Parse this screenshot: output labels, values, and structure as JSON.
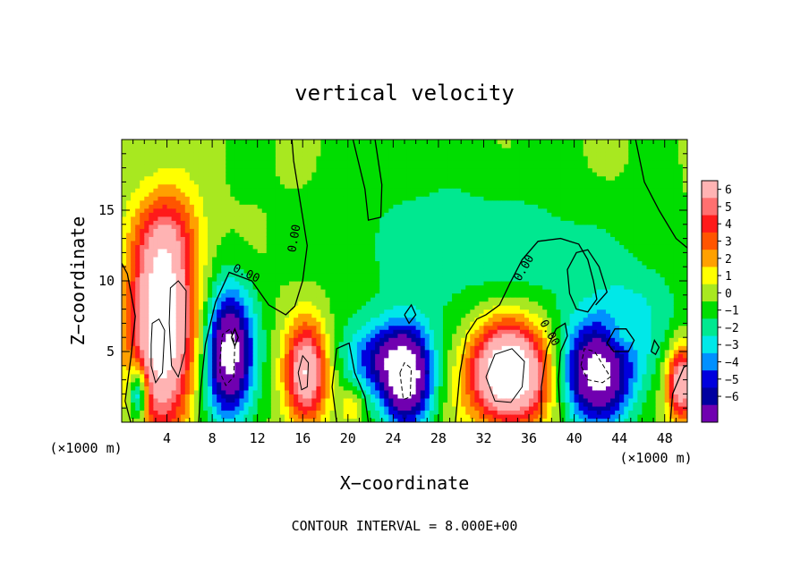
{
  "chart_data": {
    "type": "heatmap",
    "title": "vertical velocity",
    "xlabel": "X−coordinate",
    "ylabel": "Z−coordinate",
    "x_unit_label_left": "(×1000 m)",
    "x_unit_label_right": "(×1000 m)",
    "footer": "CONTOUR INTERVAL = 8.000E+00",
    "xlim": [
      0,
      50
    ],
    "ylim": [
      0,
      20
    ],
    "x_ticks": [
      {
        "value": 4,
        "label": "4"
      },
      {
        "value": 8,
        "label": "8"
      },
      {
        "value": 12,
        "label": "12"
      },
      {
        "value": 16,
        "label": "16"
      },
      {
        "value": 20,
        "label": "20"
      },
      {
        "value": 24,
        "label": "24"
      },
      {
        "value": 28,
        "label": "28"
      },
      {
        "value": 32,
        "label": "32"
      },
      {
        "value": 36,
        "label": "36"
      },
      {
        "value": 40,
        "label": "40"
      },
      {
        "value": 44,
        "label": "44"
      },
      {
        "value": 48,
        "label": "48"
      }
    ],
    "y_ticks": [
      {
        "value": 5,
        "label": "5"
      },
      {
        "value": 10,
        "label": "10"
      },
      {
        "value": 15,
        "label": "15"
      }
    ],
    "colorbar": {
      "min": -6,
      "max": 6,
      "levels": [
        "6",
        "5",
        "4",
        "3",
        "2",
        "1",
        "0",
        "−1",
        "−2",
        "−3",
        "−4",
        "−5",
        "−6"
      ],
      "colors": [
        "#ffb3b3",
        "#ff7070",
        "#ff1a1a",
        "#ff5500",
        "#ffa000",
        "#ffff00",
        "#a8e820",
        "#00dd00",
        "#00e890",
        "#00e8e8",
        "#0090ff",
        "#0000dd",
        "#0000a0",
        "#7000b0"
      ]
    },
    "background_value": 0,
    "features": [
      {
        "cx": 3.5,
        "cy": 6.5,
        "sx": 2.0,
        "sy": 5.0,
        "amp": 10
      },
      {
        "cx": 4.3,
        "cy": 13.0,
        "sx": 2.0,
        "sy": 2.5,
        "amp": 3
      },
      {
        "cx": 1.5,
        "cy": 2.0,
        "sx": 0.6,
        "sy": 1.5,
        "amp": -6
      },
      {
        "cx": 9.5,
        "cy": 4.8,
        "sx": 1.5,
        "sy": 3.2,
        "amp": -9
      },
      {
        "cx": 16.3,
        "cy": 3.5,
        "sx": 1.3,
        "sy": 2.5,
        "amp": 8
      },
      {
        "cx": 20.3,
        "cy": 1.2,
        "sx": 0.6,
        "sy": 0.8,
        "amp": 2
      },
      {
        "cx": 25.2,
        "cy": 3.3,
        "sx": 1.6,
        "sy": 2.5,
        "amp": -9
      },
      {
        "cx": 22.5,
        "cy": 4.5,
        "sx": 2.0,
        "sy": 1.8,
        "amp": -4
      },
      {
        "cx": 34.3,
        "cy": 3.5,
        "sx": 2.5,
        "sy": 2.5,
        "amp": 11
      },
      {
        "cx": 42.0,
        "cy": 3.5,
        "sx": 2.2,
        "sy": 2.5,
        "amp": -9
      },
      {
        "cx": 44.0,
        "cy": 6.0,
        "sx": 1.0,
        "sy": 1.0,
        "amp": 1.5
      },
      {
        "cx": 49.5,
        "cy": 2.8,
        "sx": 0.9,
        "sy": 1.8,
        "amp": 8
      },
      {
        "cx": 28.0,
        "cy": 12.5,
        "sx": 6.0,
        "sy": 4.0,
        "amp": -1.5
      },
      {
        "cx": 38.0,
        "cy": 12.0,
        "sx": 4.0,
        "sy": 3.0,
        "amp": -1.2
      },
      {
        "cx": 45.5,
        "cy": 8.0,
        "sx": 3.0,
        "sy": 3.0,
        "amp": -1.8
      }
    ],
    "contour_labels": [
      {
        "text": "0.00",
        "x": 15.3,
        "y": 13.0,
        "rotate": -80
      },
      {
        "text": "0.00",
        "x": 11.0,
        "y": 10.5,
        "rotate": 25
      },
      {
        "text": "0.00",
        "x": 35.6,
        "y": 10.9,
        "rotate": -60
      },
      {
        "text": "0.00",
        "x": 37.8,
        "y": 6.3,
        "rotate": 60
      }
    ],
    "contours_zero": [
      [
        [
          -0.5,
          12
        ],
        [
          0.5,
          10.5
        ],
        [
          1.2,
          7.5
        ],
        [
          0.8,
          4.5
        ],
        [
          0.3,
          1.5
        ],
        [
          0.8,
          0
        ]
      ],
      [
        [
          6.8,
          0
        ],
        [
          7.0,
          2.5
        ],
        [
          7.4,
          5.5
        ],
        [
          8.3,
          8.5
        ],
        [
          9.5,
          10.6
        ],
        [
          11.5,
          10.0
        ],
        [
          13.0,
          8.3
        ],
        [
          14.5,
          7.6
        ],
        [
          15.3,
          8.2
        ],
        [
          16.0,
          10.0
        ],
        [
          16.4,
          12.5
        ],
        [
          15.8,
          15.5
        ],
        [
          15.2,
          18.5
        ],
        [
          15.0,
          20.5
        ]
      ],
      [
        [
          20.3,
          20.5
        ],
        [
          21.5,
          16.5
        ],
        [
          21.8,
          14.3
        ],
        [
          22.9,
          14.5
        ],
        [
          23.0,
          16.8
        ],
        [
          22.3,
          20.5
        ]
      ],
      [
        [
          19.0,
          0
        ],
        [
          18.6,
          2.5
        ],
        [
          19.0,
          5.2
        ],
        [
          20.1,
          5.6
        ],
        [
          20.6,
          3.5
        ],
        [
          21.5,
          1.8
        ],
        [
          21.8,
          0
        ]
      ],
      [
        [
          29.5,
          0
        ],
        [
          29.9,
          3.5
        ],
        [
          30.5,
          6.2
        ],
        [
          31.4,
          7.3
        ],
        [
          32.2,
          7.6
        ],
        [
          33.4,
          8.3
        ],
        [
          34.3,
          9.8
        ],
        [
          35.4,
          11.5
        ],
        [
          36.8,
          12.8
        ],
        [
          38.8,
          13.0
        ],
        [
          40.4,
          12.6
        ],
        [
          41.2,
          11.5
        ],
        [
          41.7,
          10.0
        ],
        [
          42.0,
          8.7
        ],
        [
          41.2,
          7.8
        ],
        [
          40.2,
          8.0
        ],
        [
          39.6,
          9.1
        ],
        [
          39.4,
          10.8
        ],
        [
          40.2,
          12.0
        ],
        [
          41.2,
          12.2
        ],
        [
          42.2,
          11.0
        ],
        [
          42.9,
          9.2
        ],
        [
          41.9,
          8.3
        ]
      ],
      [
        [
          37.1,
          0
        ],
        [
          37.1,
          2.5
        ],
        [
          37.6,
          5.2
        ],
        [
          38.4,
          6.6
        ],
        [
          39.2,
          7.0
        ],
        [
          39.4,
          6.1
        ],
        [
          38.8,
          5.0
        ],
        [
          38.6,
          3.0
        ],
        [
          38.8,
          0
        ]
      ],
      [
        [
          45.3,
          20.5
        ],
        [
          46.2,
          17.0
        ],
        [
          47.5,
          15.0
        ],
        [
          49.0,
          13.0
        ],
        [
          50.5,
          12.0
        ]
      ],
      [
        [
          25.0,
          7.6
        ],
        [
          25.6,
          8.3
        ],
        [
          26.0,
          7.6
        ],
        [
          25.4,
          7.0
        ],
        [
          25.0,
          7.6
        ]
      ],
      [
        [
          9.7,
          6.0
        ],
        [
          10.0,
          6.6
        ],
        [
          10.3,
          6.0
        ],
        [
          10.0,
          5.4
        ],
        [
          9.7,
          6.0
        ]
      ],
      [
        [
          42.9,
          5.6
        ],
        [
          43.6,
          6.6
        ],
        [
          44.6,
          6.6
        ],
        [
          45.3,
          5.8
        ],
        [
          44.8,
          5.0
        ],
        [
          43.5,
          5.0
        ],
        [
          42.9,
          5.6
        ]
      ],
      [
        [
          46.8,
          5.0
        ],
        [
          47.1,
          5.8
        ],
        [
          47.5,
          5.3
        ],
        [
          47.2,
          4.8
        ],
        [
          46.8,
          5.0
        ]
      ],
      [
        [
          48.5,
          0
        ],
        [
          48.7,
          2.0
        ],
        [
          49.7,
          3.9
        ],
        [
          50.5,
          4.2
        ]
      ]
    ],
    "contours_pos": [
      [
        [
          2.6,
          5.5
        ],
        [
          2.7,
          7.0
        ],
        [
          3.3,
          7.3
        ],
        [
          3.8,
          6.5
        ],
        [
          3.6,
          3.5
        ],
        [
          3.0,
          2.8
        ],
        [
          2.6,
          4.0
        ],
        [
          2.6,
          5.5
        ]
      ],
      [
        [
          4.2,
          7.0
        ],
        [
          4.3,
          9.5
        ],
        [
          5.0,
          10.0
        ],
        [
          5.7,
          9.3
        ],
        [
          5.6,
          5.0
        ],
        [
          5.0,
          3.2
        ],
        [
          4.4,
          4.0
        ],
        [
          4.2,
          7.0
        ]
      ],
      [
        [
          15.6,
          3.5
        ],
        [
          16.0,
          4.7
        ],
        [
          16.5,
          4.2
        ],
        [
          16.4,
          2.5
        ],
        [
          15.9,
          2.3
        ],
        [
          15.6,
          3.5
        ]
      ],
      [
        [
          32.2,
          3.2
        ],
        [
          33.0,
          4.8
        ],
        [
          34.5,
          5.2
        ],
        [
          35.6,
          4.3
        ],
        [
          35.4,
          2.5
        ],
        [
          34.4,
          1.4
        ],
        [
          33.0,
          1.5
        ],
        [
          32.2,
          3.2
        ]
      ]
    ],
    "contours_neg": [
      [
        [
          8.7,
          4.5
        ],
        [
          8.9,
          6.2
        ],
        [
          9.6,
          6.6
        ],
        [
          10.0,
          5.5
        ],
        [
          9.9,
          3.2
        ],
        [
          9.2,
          2.6
        ],
        [
          8.7,
          3.5
        ],
        [
          8.7,
          4.5
        ]
      ],
      [
        [
          24.6,
          3.5
        ],
        [
          25.0,
          4.2
        ],
        [
          25.6,
          3.8
        ],
        [
          25.5,
          1.8
        ],
        [
          24.9,
          1.6
        ],
        [
          24.6,
          3.5
        ]
      ],
      [
        [
          40.6,
          4.0
        ],
        [
          40.9,
          5.2
        ],
        [
          41.8,
          5.0
        ],
        [
          43.2,
          3.2
        ],
        [
          42.5,
          2.8
        ],
        [
          41.2,
          3.0
        ],
        [
          40.6,
          4.0
        ]
      ]
    ]
  }
}
